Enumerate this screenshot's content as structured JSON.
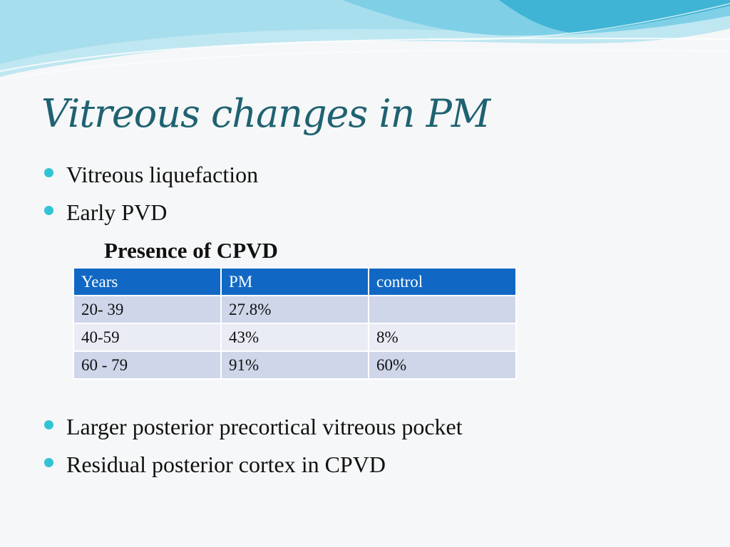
{
  "slide": {
    "title": "Vitreous changes in PM",
    "bullets_top": [
      "Vitreous liquefaction",
      "Early PVD"
    ],
    "subheading": "Presence of CPVD",
    "table": {
      "headers": [
        "Years",
        "PM",
        "control"
      ],
      "rows": [
        [
          "20- 39",
          "27.8%",
          ""
        ],
        [
          "40-59",
          "43%",
          "8%"
        ],
        [
          "60 - 79",
          "91%",
          "60%"
        ]
      ]
    },
    "bullets_bottom": [
      "Larger posterior precortical vitreous pocket",
      "Residual posterior cortex in CPVD"
    ]
  },
  "colors": {
    "title": "#1f6272",
    "bullet": "#33c3d6",
    "table_header": "#1068c4",
    "table_row_odd": "#cfd6ea",
    "table_row_even": "#e9ecf5",
    "wave_light": "#bfe7f1",
    "wave_mid": "#7fd0e6",
    "wave_dark": "#3fb4d4"
  }
}
